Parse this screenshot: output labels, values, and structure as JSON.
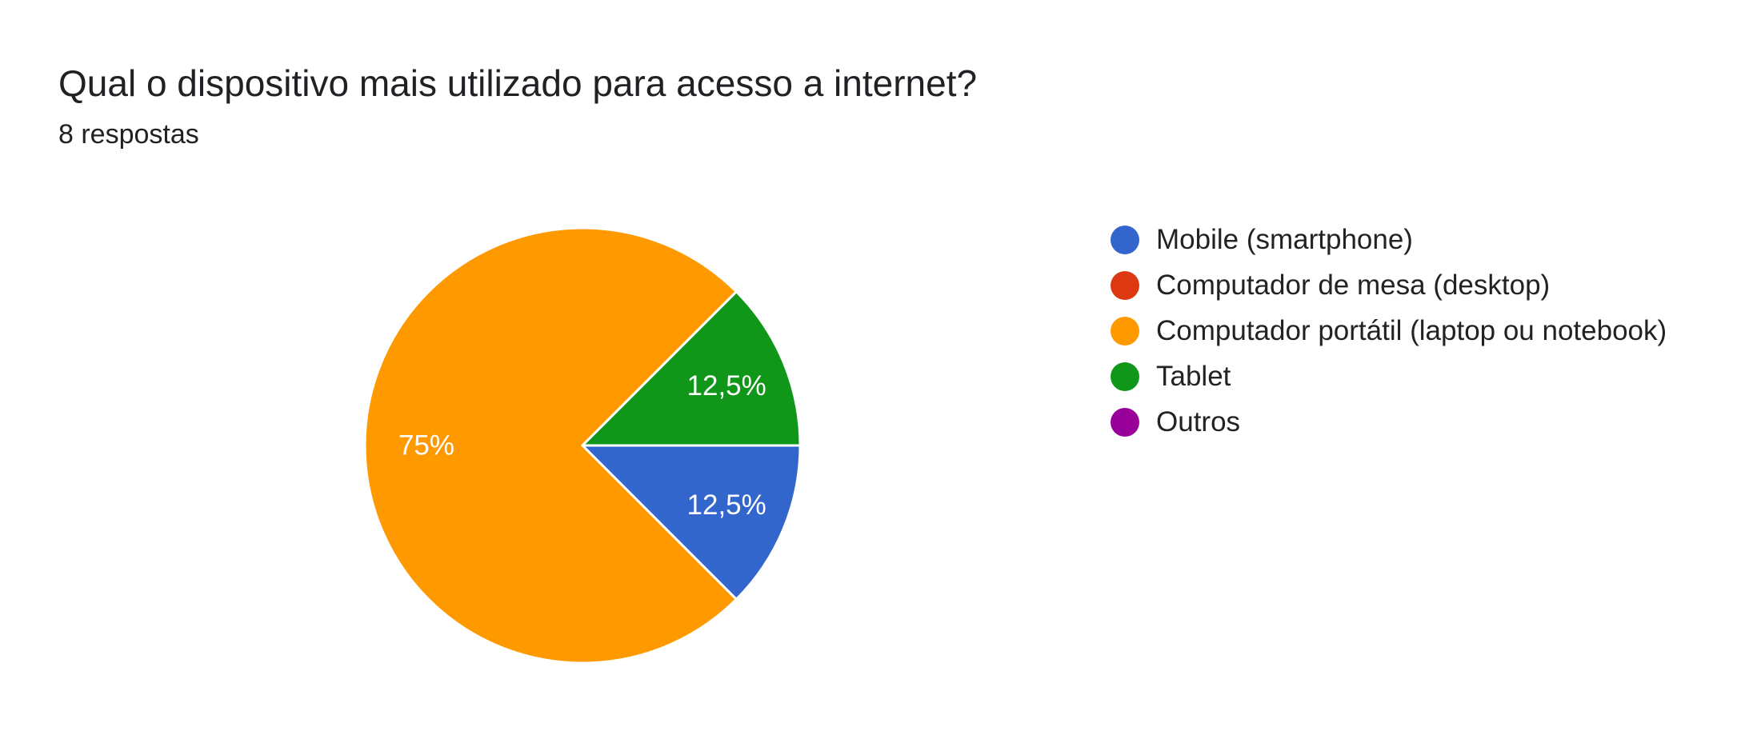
{
  "question": {
    "title": "Qual o dispositivo mais utilizado para acesso a internet?",
    "responses": "8 respostas"
  },
  "chart_data": {
    "type": "pie",
    "title": "Qual o dispositivo mais utilizado para acesso a internet?",
    "subtitle": "8 respostas",
    "legend_position": "right",
    "categories": [
      "Mobile (smartphone)",
      "Computador de mesa (desktop)",
      "Computador portátil (laptop ou notebook)",
      "Tablet",
      "Outros"
    ],
    "values": [
      1,
      0,
      6,
      1,
      0
    ],
    "percent_labels": [
      "12,5%",
      "",
      "75%",
      "12,5%",
      ""
    ],
    "colors": [
      "#3366cc",
      "#dc3912",
      "#ff9900",
      "#109618",
      "#990099"
    ]
  }
}
